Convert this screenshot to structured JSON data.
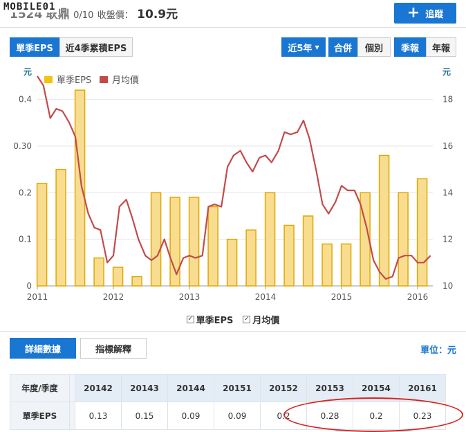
{
  "header": {
    "logo": "MOBILE01",
    "stock_code": "1524",
    "stock_name": "耿鼎",
    "date_fragment": "0/10",
    "close_label": "收盤價：",
    "close_price": "10.9元",
    "follow_label": "追蹤"
  },
  "tabs": {
    "eps_single": "單季EPS",
    "eps_4q": "近4季累積EPS",
    "range": "近5年",
    "merge": "合併",
    "individual": "個別",
    "quarterly": "季報",
    "annual": "年報"
  },
  "legend": {
    "bar_label": "單季EPS",
    "line_label": "月均價",
    "check_mark": "✓"
  },
  "bottom_tabs": {
    "detail": "詳細數據",
    "explain": "指標解釋"
  },
  "unit_label": "單位：元",
  "table": {
    "row_header_label": "年度/季度",
    "columns": [
      "20142",
      "20143",
      "20144",
      "20151",
      "20152",
      "20153",
      "20154",
      "20161"
    ],
    "row_label": "單季EPS",
    "values": [
      "0.13",
      "0.15",
      "0.09",
      "0.09",
      "0.2",
      "0.28",
      "0.2",
      "0.23"
    ]
  },
  "colors": {
    "accent": "#1976d2",
    "bar_fill": "#f8dd91",
    "bar_stroke": "#e0a800",
    "line": "#c44a4a",
    "highlight_ring": "#dd2222"
  },
  "chart_data": {
    "type": "bar",
    "left_axis_unit": "元",
    "right_axis_unit": "元",
    "ylim_left": [
      0,
      0.45
    ],
    "ylim_right": [
      10,
      19
    ],
    "yticks_left": [
      "0",
      "0.1",
      "0.2",
      "0.30",
      "0.4"
    ],
    "yticks_right": [
      "10",
      "12",
      "14",
      "16",
      "18"
    ],
    "x_ticks": [
      "2011",
      "2012",
      "2013",
      "2014",
      "2015",
      "2016"
    ],
    "grid": true,
    "legend_position": "top-left",
    "series": [
      {
        "name": "單季EPS",
        "kind": "bar",
        "x": [
          2011.06,
          2011.31,
          2011.56,
          2011.81,
          2012.06,
          2012.31,
          2012.56,
          2012.81,
          2013.06,
          2013.31,
          2013.56,
          2013.81,
          2014.06,
          2014.31,
          2014.56,
          2014.81,
          2015.06,
          2015.31,
          2015.56,
          2015.81,
          2016.06
        ],
        "values": [
          0.22,
          0.25,
          0.42,
          0.06,
          0.04,
          0.02,
          0.2,
          0.19,
          0.19,
          0.17,
          0.1,
          0.12,
          0.2,
          0.13,
          0.15,
          0.09,
          0.09,
          0.2,
          0.28,
          0.2,
          0.23
        ]
      },
      {
        "name": "月均價",
        "kind": "line",
        "x": [
          2011.0,
          2011.08,
          2011.17,
          2011.25,
          2011.33,
          2011.42,
          2011.5,
          2011.58,
          2011.67,
          2011.75,
          2011.83,
          2011.92,
          2012.0,
          2012.08,
          2012.17,
          2012.25,
          2012.33,
          2012.42,
          2012.5,
          2012.58,
          2012.67,
          2012.75,
          2012.83,
          2012.92,
          2013.0,
          2013.08,
          2013.17,
          2013.25,
          2013.33,
          2013.42,
          2013.5,
          2013.58,
          2013.67,
          2013.75,
          2013.83,
          2013.92,
          2014.0,
          2014.08,
          2014.17,
          2014.25,
          2014.33,
          2014.42,
          2014.5,
          2014.58,
          2014.67,
          2014.75,
          2014.83,
          2014.92,
          2015.0,
          2015.08,
          2015.17,
          2015.25,
          2015.33,
          2015.42,
          2015.5,
          2015.58,
          2015.67,
          2015.75,
          2015.83,
          2015.92,
          2016.0,
          2016.08,
          2016.17
        ],
        "values": [
          19.0,
          18.6,
          17.2,
          17.6,
          17.5,
          17.0,
          16.4,
          14.3,
          13.1,
          12.5,
          12.4,
          11.0,
          11.3,
          13.4,
          13.7,
          12.9,
          12.0,
          11.3,
          11.1,
          11.3,
          12.0,
          11.2,
          10.5,
          11.2,
          11.3,
          11.2,
          11.3,
          13.4,
          13.5,
          13.4,
          15.1,
          15.6,
          15.8,
          15.3,
          14.9,
          15.5,
          15.6,
          15.3,
          15.8,
          16.6,
          16.5,
          16.6,
          17.1,
          16.3,
          14.9,
          13.5,
          13.1,
          13.6,
          14.3,
          14.1,
          14.1,
          13.5,
          12.5,
          11.1,
          10.6,
          10.3,
          10.4,
          11.2,
          11.3,
          11.3,
          11.0,
          11.0,
          11.3
        ]
      }
    ]
  }
}
